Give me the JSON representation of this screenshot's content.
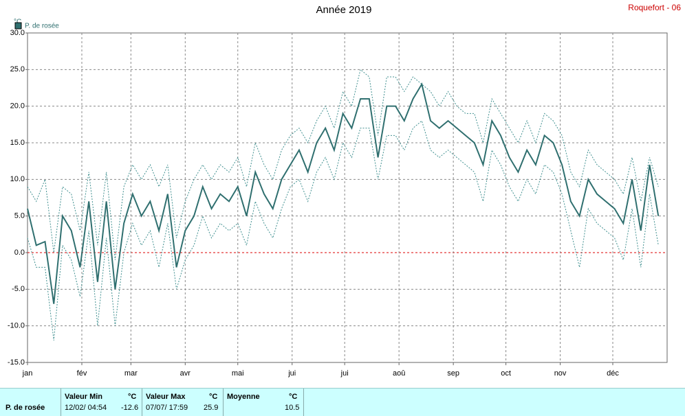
{
  "chart_data": {
    "type": "line",
    "title": "Année 2019",
    "station": "Roquefort - 06",
    "y_unit": "°C",
    "xlim": [
      0,
      365
    ],
    "xticks": [
      {
        "value": 0,
        "label": "jan"
      },
      {
        "value": 31,
        "label": "fév"
      },
      {
        "value": 59,
        "label": "mar"
      },
      {
        "value": 90,
        "label": "avr"
      },
      {
        "value": 120,
        "label": "mai"
      },
      {
        "value": 151,
        "label": "jui"
      },
      {
        "value": 181,
        "label": "jui"
      },
      {
        "value": 212,
        "label": "aoû"
      },
      {
        "value": 243,
        "label": "sep"
      },
      {
        "value": 273,
        "label": "oct"
      },
      {
        "value": 304,
        "label": "nov"
      },
      {
        "value": 334,
        "label": "déc"
      }
    ],
    "ylim": [
      -15,
      30
    ],
    "yticks": [
      {
        "value": -15,
        "label": "-15.0"
      },
      {
        "value": -10,
        "label": "-10.0"
      },
      {
        "value": -5,
        "label": "-5.0"
      },
      {
        "value": 0,
        "label": "0.0"
      },
      {
        "value": 5,
        "label": "5.0"
      },
      {
        "value": 10,
        "label": "10.0"
      },
      {
        "value": 15,
        "label": "15.0"
      },
      {
        "value": 20,
        "label": "20.0"
      },
      {
        "value": 25,
        "label": "25.0"
      },
      {
        "value": 30,
        "label": "30.0"
      }
    ],
    "grid": true,
    "zero_line_color": "#dd0000",
    "x": [
      0,
      5,
      10,
      15,
      20,
      25,
      30,
      35,
      40,
      45,
      50,
      55,
      60,
      65,
      70,
      75,
      80,
      85,
      90,
      95,
      100,
      105,
      110,
      115,
      120,
      125,
      130,
      135,
      140,
      145,
      150,
      155,
      160,
      165,
      170,
      175,
      180,
      185,
      190,
      195,
      200,
      205,
      210,
      215,
      220,
      225,
      230,
      235,
      240,
      245,
      250,
      255,
      260,
      265,
      270,
      275,
      280,
      285,
      290,
      295,
      300,
      305,
      310,
      315,
      320,
      325,
      330,
      335,
      340,
      345,
      350,
      355,
      360
    ],
    "series": [
      {
        "name": "P. de rosée",
        "color": "#2f6f6f",
        "values": [
          6,
          1,
          1.5,
          -7,
          5,
          3,
          -2,
          7,
          -4,
          7,
          -5,
          4,
          8,
          5,
          7,
          3,
          8,
          -2,
          3,
          5,
          9,
          6,
          8,
          7,
          9,
          5,
          11,
          8,
          6,
          10,
          12,
          14,
          11,
          15,
          17,
          14,
          19,
          17,
          21,
          21,
          13,
          20,
          20,
          18,
          21,
          23,
          18,
          17,
          18,
          17,
          16,
          15,
          12,
          18,
          16,
          13,
          11,
          14,
          12,
          16,
          15,
          12,
          7,
          5,
          10,
          8,
          7,
          6,
          4,
          10,
          3,
          12,
          5
        ]
      },
      {
        "color": "#3f8f8f",
        "dashed": true,
        "values": [
          9,
          7,
          10,
          0,
          9,
          8,
          3,
          11,
          1,
          11,
          -1,
          9,
          12,
          10,
          12,
          9,
          12,
          2,
          7,
          10,
          12,
          10,
          12,
          11,
          13,
          9,
          15,
          12,
          10,
          14,
          16,
          17,
          15,
          18,
          20,
          17,
          22,
          20,
          25,
          24,
          16,
          24,
          24,
          22,
          24,
          23,
          22,
          20,
          22,
          20,
          19,
          19,
          15,
          21,
          19,
          17,
          15,
          18,
          15,
          19,
          18,
          16,
          11,
          9,
          14,
          12,
          11,
          10,
          8,
          13,
          7,
          13,
          9
        ]
      },
      {
        "color": "#3f8f8f",
        "dashed": true,
        "values": [
          2,
          -2,
          -2,
          -12,
          1,
          -1,
          -6,
          3,
          -10,
          2,
          -10,
          0,
          4,
          1,
          3,
          -2,
          4,
          -5,
          -1,
          1,
          5,
          2,
          4,
          3,
          4,
          1,
          7,
          4,
          2,
          6,
          9,
          10,
          7,
          11,
          13,
          10,
          15,
          13,
          17,
          17,
          10,
          16,
          16,
          14,
          17,
          18,
          14,
          13,
          14,
          13,
          12,
          11,
          7,
          14,
          12,
          9,
          7,
          10,
          8,
          12,
          11,
          8,
          3,
          -2,
          6,
          4,
          3,
          2,
          -1,
          6,
          -2,
          8,
          1
        ]
      }
    ]
  },
  "summary": {
    "name": "P. de rosée",
    "unit": "°C",
    "min_label": "Valeur Min",
    "min_date": "12/02/ 04:54",
    "min_value": "-12.6",
    "max_label": "Valeur Max",
    "max_date": "07/07/ 17:59",
    "max_value": "25.9",
    "mean_label": "Moyenne",
    "mean_value": "10.5"
  }
}
